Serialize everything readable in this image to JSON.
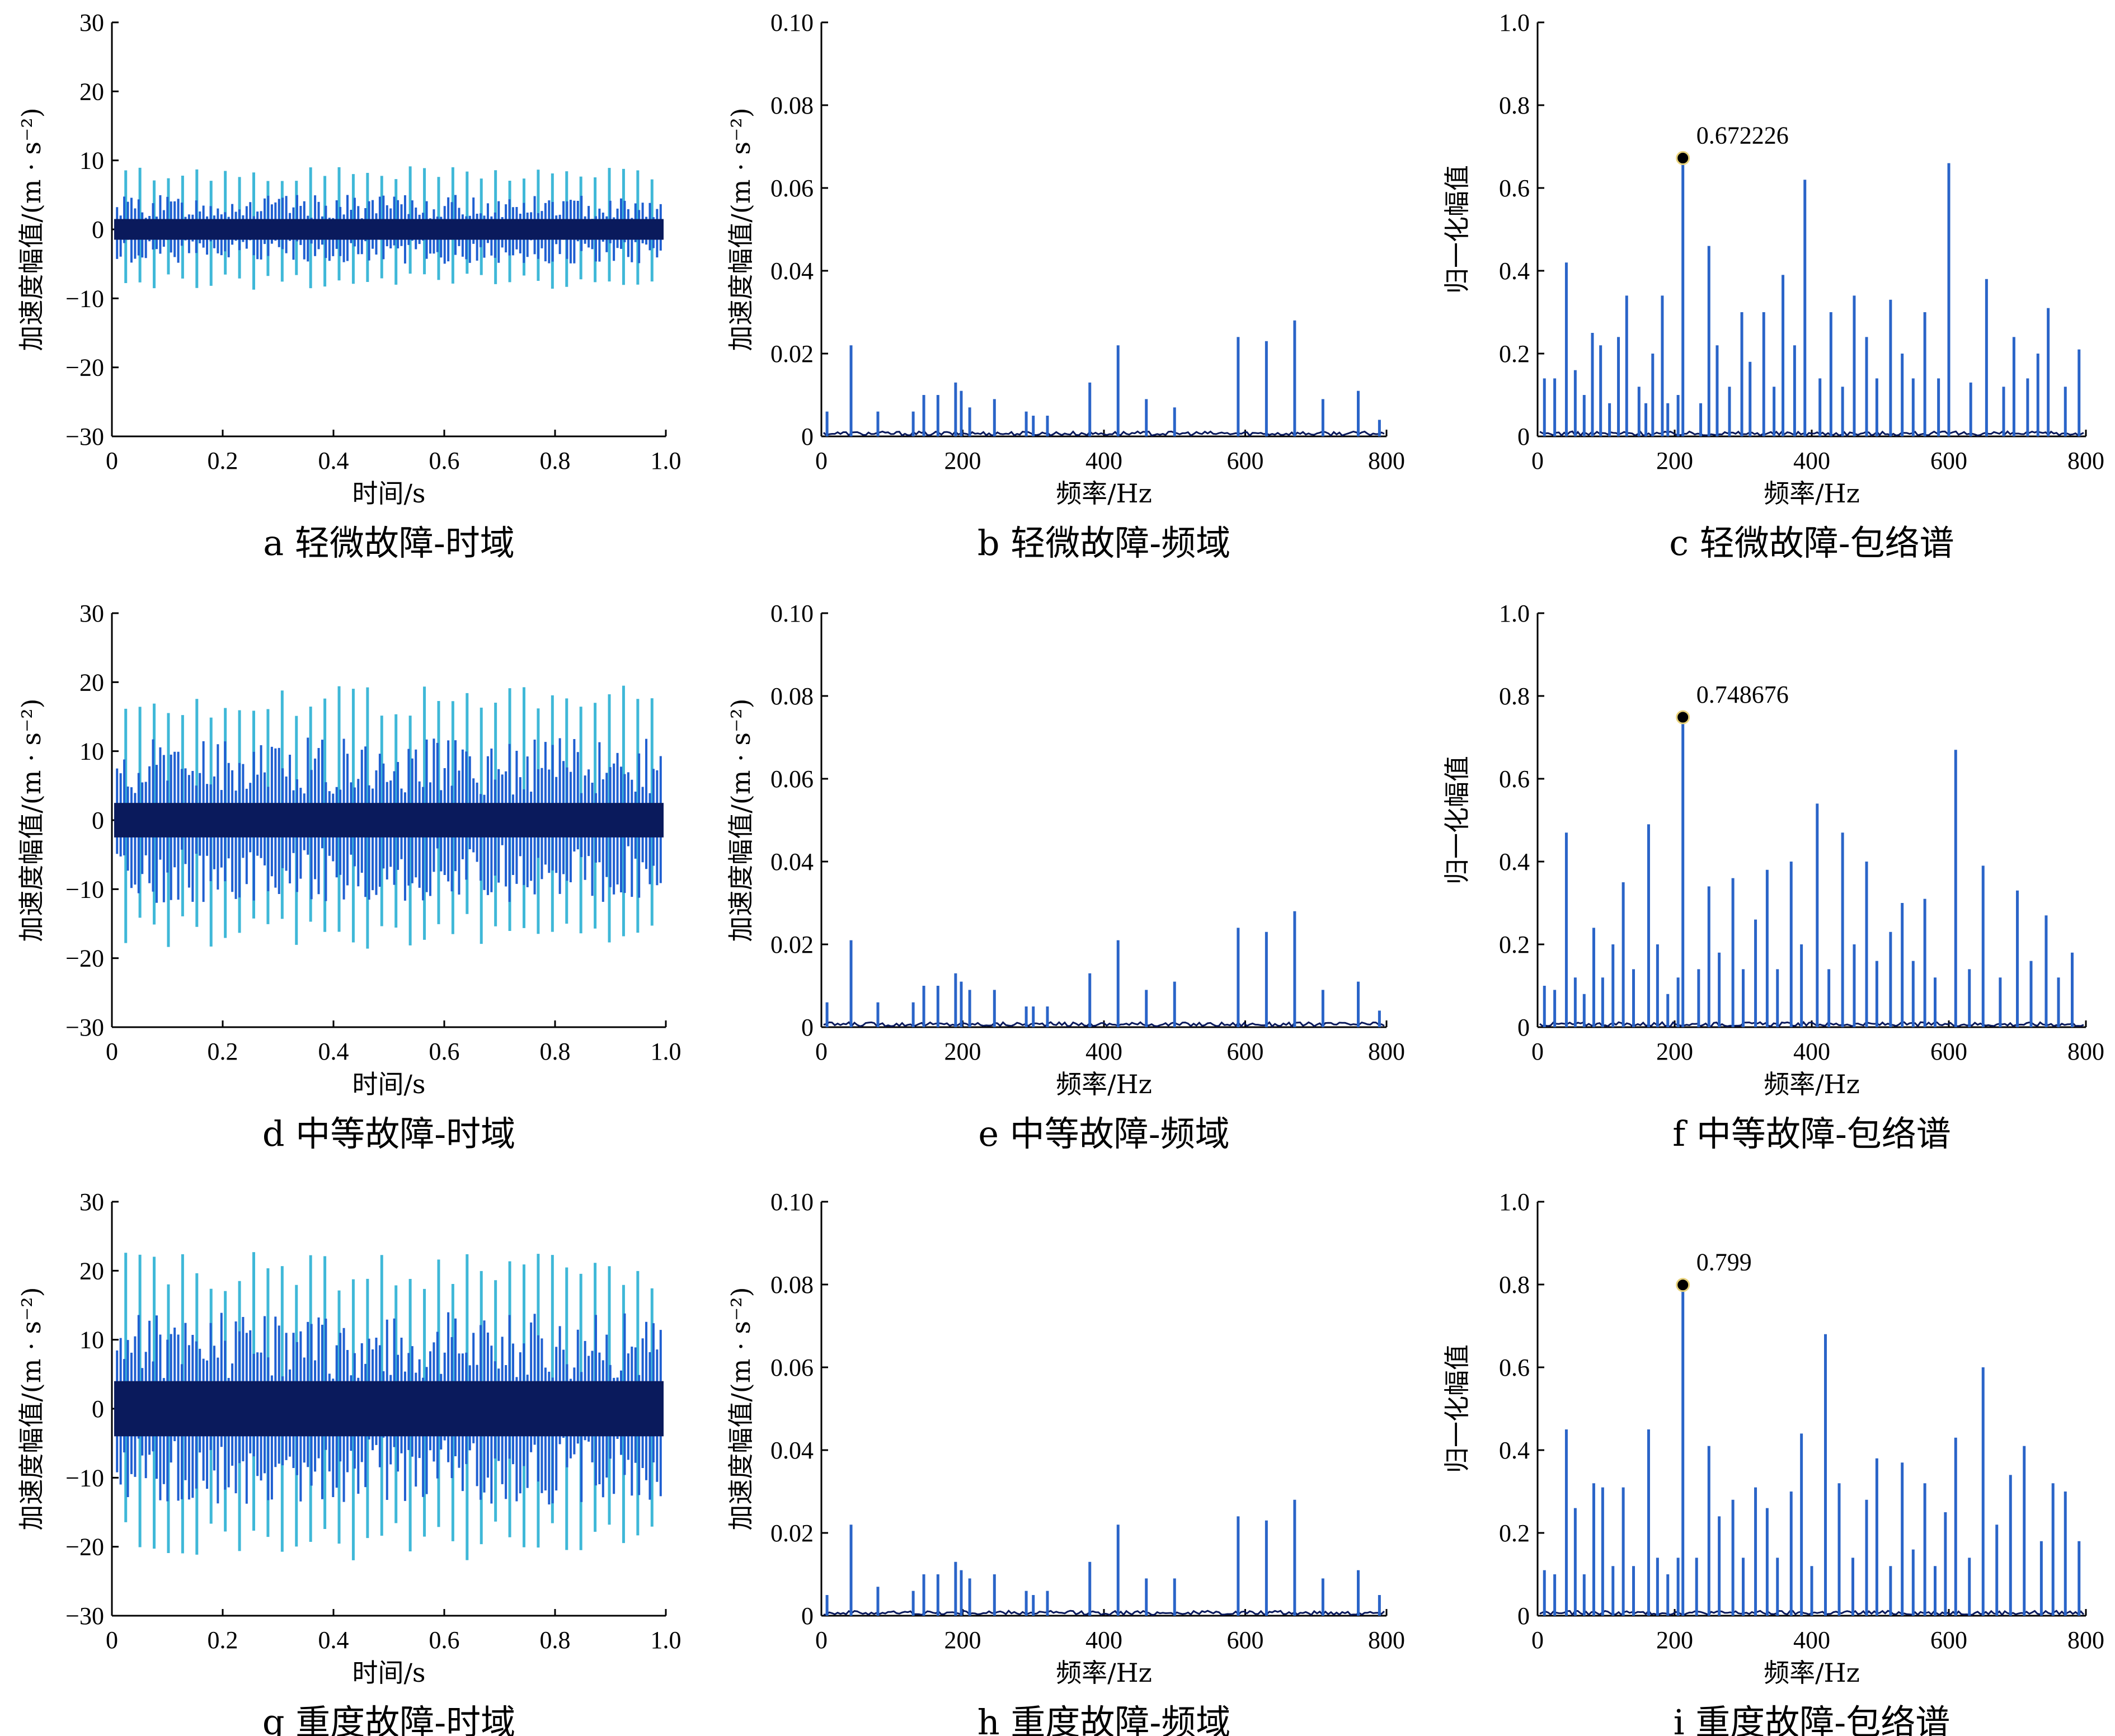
{
  "colors": {
    "dark": "#0a1a5c",
    "mid": "#1f5fd1",
    "light": "#3fb8d8",
    "peak": "#2a64c8"
  },
  "chart_data": [
    {
      "id": "a",
      "type": "line",
      "caption": "a  轻微故障-时域",
      "xlabel": "时间/s",
      "ylabel": "加速度幅值/(m · s⁻²)",
      "xlim": [
        0,
        1.0
      ],
      "ylim": [
        -30,
        30
      ],
      "xticks": [
        "0",
        "0.2",
        "0.4",
        "0.6",
        "0.8",
        "1.0"
      ],
      "yticks": [
        "30",
        "20",
        "10",
        "0",
        "−10",
        "−20",
        "−30"
      ],
      "impulses": 38,
      "amplitude_light": 8,
      "amplitude_mid": 5,
      "amplitude_dark": 1.5
    },
    {
      "id": "b",
      "type": "line",
      "caption": "b  轻微故障-频域",
      "xlabel": "频率/Hz",
      "ylabel": "加速度幅值/(m · s⁻²)",
      "xlim": [
        0,
        800
      ],
      "ylim": [
        0,
        0.1
      ],
      "xticks": [
        "0",
        "200",
        "400",
        "600",
        "800"
      ],
      "yticks": [
        "0.10",
        "0.08",
        "0.06",
        "0.04",
        "0.02",
        "0"
      ],
      "x": [
        8,
        42,
        80,
        130,
        145,
        165,
        190,
        198,
        210,
        245,
        290,
        300,
        320,
        380,
        420,
        460,
        500,
        590,
        630,
        670,
        710,
        760,
        790
      ],
      "y": [
        0.006,
        0.022,
        0.006,
        0.006,
        0.01,
        0.01,
        0.013,
        0.011,
        0.007,
        0.009,
        0.006,
        0.005,
        0.005,
        0.013,
        0.022,
        0.009,
        0.007,
        0.024,
        0.023,
        0.028,
        0.009,
        0.011,
        0.004
      ]
    },
    {
      "id": "c",
      "type": "line",
      "caption": "c  轻微故障-包络谱",
      "xlabel": "频率/Hz",
      "ylabel": "归一化幅值",
      "xlim": [
        0,
        800
      ],
      "ylim": [
        0,
        1.0
      ],
      "xticks": [
        "0",
        "200",
        "400",
        "600",
        "800"
      ],
      "yticks": [
        "1.0",
        "0.8",
        "0.6",
        "0.4",
        "0.2",
        "0"
      ],
      "x": [
        10,
        25,
        42,
        55,
        68,
        80,
        92,
        105,
        118,
        130,
        148,
        158,
        168,
        182,
        190,
        205,
        212,
        238,
        250,
        262,
        280,
        298,
        310,
        330,
        345,
        358,
        375,
        390,
        412,
        428,
        445,
        462,
        480,
        495,
        515,
        532,
        548,
        565,
        585,
        600,
        632,
        655,
        680,
        695,
        715,
        730,
        745,
        770,
        790
      ],
      "y": [
        0.14,
        0.14,
        0.42,
        0.16,
        0.1,
        0.25,
        0.22,
        0.08,
        0.24,
        0.34,
        0.12,
        0.08,
        0.2,
        0.34,
        0.08,
        0.1,
        0.672226,
        0.08,
        0.46,
        0.22,
        0.12,
        0.3,
        0.18,
        0.3,
        0.12,
        0.39,
        0.22,
        0.62,
        0.14,
        0.3,
        0.12,
        0.34,
        0.24,
        0.14,
        0.33,
        0.2,
        0.14,
        0.3,
        0.14,
        0.66,
        0.13,
        0.38,
        0.12,
        0.24,
        0.14,
        0.2,
        0.31,
        0.12,
        0.21
      ],
      "annotation": {
        "x": 212,
        "y": 0.672226,
        "label": "0.672226"
      }
    },
    {
      "id": "d",
      "type": "line",
      "caption": "d  中等故障-时域",
      "xlabel": "时间/s",
      "ylabel": "加速度幅值/(m · s⁻²)",
      "xlim": [
        0,
        1.0
      ],
      "ylim": [
        -30,
        30
      ],
      "xticks": [
        "0",
        "0.2",
        "0.4",
        "0.6",
        "0.8",
        "1.0"
      ],
      "yticks": [
        "30",
        "20",
        "10",
        "0",
        "−10",
        "−20",
        "−30"
      ],
      "impulses": 38,
      "amplitude_light": 17,
      "amplitude_mid": 12,
      "amplitude_dark": 2.5
    },
    {
      "id": "e",
      "type": "line",
      "caption": "e  中等故障-频域",
      "xlabel": "频率/Hz",
      "ylabel": "加速度幅值/(m · s⁻²)",
      "xlim": [
        0,
        800
      ],
      "ylim": [
        0,
        0.1
      ],
      "xticks": [
        "0",
        "200",
        "400",
        "600",
        "800"
      ],
      "yticks": [
        "0.10",
        "0.08",
        "0.06",
        "0.04",
        "0.02",
        "0"
      ],
      "x": [
        8,
        42,
        80,
        130,
        145,
        165,
        190,
        198,
        210,
        245,
        290,
        300,
        320,
        380,
        420,
        460,
        500,
        590,
        630,
        670,
        710,
        760,
        790
      ],
      "y": [
        0.006,
        0.021,
        0.006,
        0.006,
        0.01,
        0.01,
        0.013,
        0.011,
        0.009,
        0.009,
        0.005,
        0.005,
        0.005,
        0.013,
        0.021,
        0.009,
        0.011,
        0.024,
        0.023,
        0.028,
        0.009,
        0.011,
        0.004
      ]
    },
    {
      "id": "f",
      "type": "line",
      "caption": "f  中等故障-包络谱",
      "xlabel": "频率/Hz",
      "ylabel": "归一化幅值",
      "xlim": [
        0,
        800
      ],
      "ylim": [
        0,
        1.0
      ],
      "xticks": [
        "0",
        "200",
        "400",
        "600",
        "800"
      ],
      "yticks": [
        "1.0",
        "0.8",
        "0.6",
        "0.4",
        "0.2",
        "0"
      ],
      "x": [
        10,
        25,
        42,
        55,
        68,
        82,
        95,
        110,
        125,
        140,
        162,
        175,
        190,
        205,
        212,
        235,
        250,
        265,
        285,
        300,
        318,
        335,
        350,
        370,
        385,
        408,
        425,
        445,
        462,
        480,
        495,
        515,
        532,
        548,
        565,
        580,
        610,
        630,
        650,
        675,
        700,
        720,
        742,
        760,
        780
      ],
      "y": [
        0.1,
        0.09,
        0.47,
        0.12,
        0.08,
        0.24,
        0.12,
        0.2,
        0.35,
        0.14,
        0.49,
        0.2,
        0.08,
        0.12,
        0.748676,
        0.14,
        0.34,
        0.18,
        0.36,
        0.14,
        0.26,
        0.38,
        0.14,
        0.4,
        0.2,
        0.54,
        0.14,
        0.47,
        0.2,
        0.4,
        0.16,
        0.23,
        0.3,
        0.16,
        0.31,
        0.12,
        0.67,
        0.14,
        0.39,
        0.12,
        0.33,
        0.16,
        0.27,
        0.12,
        0.18
      ],
      "annotation": {
        "x": 212,
        "y": 0.748676,
        "label": "0.748676"
      }
    },
    {
      "id": "g",
      "type": "line",
      "caption": "g  重度故障-时域",
      "xlabel": "时间/s",
      "ylabel": "加速度幅值/(m · s⁻²)",
      "xlim": [
        0,
        1.0
      ],
      "ylim": [
        -30,
        30
      ],
      "xticks": [
        "0",
        "0.2",
        "0.4",
        "0.6",
        "0.8",
        "1.0"
      ],
      "yticks": [
        "30",
        "20",
        "10",
        "0",
        "−10",
        "−20",
        "−30"
      ],
      "impulses": 38,
      "amplitude_light": 20,
      "amplitude_mid": 14,
      "amplitude_dark": 4
    },
    {
      "id": "h",
      "type": "line",
      "caption": "h  重度故障-频域",
      "xlabel": "频率/Hz",
      "ylabel": "加速度幅值/(m · s⁻²)",
      "xlim": [
        0,
        800
      ],
      "ylim": [
        0,
        0.1
      ],
      "xticks": [
        "0",
        "200",
        "400",
        "600",
        "800"
      ],
      "yticks": [
        "0.10",
        "0.08",
        "0.06",
        "0.04",
        "0.02",
        "0"
      ],
      "x": [
        8,
        42,
        80,
        130,
        145,
        165,
        190,
        198,
        210,
        245,
        290,
        300,
        320,
        380,
        420,
        460,
        500,
        590,
        630,
        670,
        710,
        760,
        790
      ],
      "y": [
        0.005,
        0.022,
        0.007,
        0.006,
        0.01,
        0.01,
        0.013,
        0.011,
        0.009,
        0.01,
        0.006,
        0.005,
        0.006,
        0.013,
        0.022,
        0.009,
        0.009,
        0.024,
        0.023,
        0.028,
        0.009,
        0.011,
        0.005
      ]
    },
    {
      "id": "i",
      "type": "line",
      "caption": "i  重度故障-包络谱",
      "xlabel": "频率/Hz",
      "ylabel": "归一化幅值",
      "xlim": [
        0,
        800
      ],
      "ylim": [
        0,
        1.0
      ],
      "xticks": [
        "0",
        "200",
        "400",
        "600",
        "800"
      ],
      "yticks": [
        "1.0",
        "0.8",
        "0.6",
        "0.4",
        "0.2",
        "0"
      ],
      "x": [
        10,
        25,
        42,
        55,
        68,
        82,
        95,
        110,
        125,
        140,
        162,
        175,
        190,
        205,
        212,
        232,
        250,
        265,
        285,
        300,
        318,
        335,
        350,
        370,
        385,
        400,
        420,
        440,
        460,
        480,
        495,
        515,
        532,
        548,
        565,
        580,
        595,
        610,
        630,
        650,
        670,
        690,
        710,
        735,
        752,
        770,
        790
      ],
      "y": [
        0.11,
        0.1,
        0.45,
        0.26,
        0.1,
        0.32,
        0.31,
        0.12,
        0.31,
        0.12,
        0.45,
        0.14,
        0.1,
        0.14,
        0.799,
        0.14,
        0.41,
        0.24,
        0.28,
        0.14,
        0.31,
        0.26,
        0.14,
        0.3,
        0.44,
        0.12,
        0.68,
        0.32,
        0.14,
        0.28,
        0.38,
        0.12,
        0.37,
        0.16,
        0.32,
        0.12,
        0.25,
        0.43,
        0.14,
        0.6,
        0.22,
        0.34,
        0.41,
        0.18,
        0.32,
        0.3,
        0.18
      ],
      "annotation": {
        "x": 212,
        "y": 0.799,
        "label": "0.799"
      }
    }
  ]
}
